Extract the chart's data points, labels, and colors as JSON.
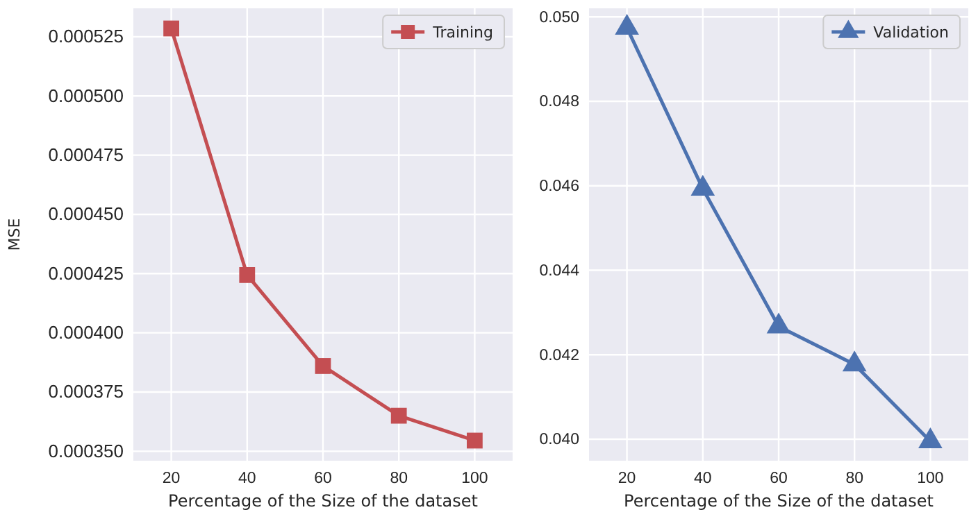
{
  "chart_data": [
    {
      "type": "line",
      "x": [
        20,
        40,
        60,
        80,
        100
      ],
      "xlabel": "Percentage of the Size of the dataset",
      "ylabel": "MSE",
      "series": [
        {
          "name": "Training",
          "color": "#c44e52",
          "values": [
            0.0005285,
            0.0004244,
            0.000386,
            0.000365,
            0.0003545
          ]
        }
      ],
      "xlim": [
        10,
        110
      ],
      "xticks": [
        20,
        40,
        60,
        80,
        100
      ],
      "ylim": [
        0.000346,
        0.000537
      ],
      "yticks": [
        {
          "value": 0.00035,
          "label": "0.000350"
        },
        {
          "value": 0.000375,
          "label": "0.000375"
        },
        {
          "value": 0.0004,
          "label": "0.000400"
        },
        {
          "value": 0.000425,
          "label": "0.000425"
        },
        {
          "value": 0.00045,
          "label": "0.000450"
        },
        {
          "value": 0.000475,
          "label": "0.000475"
        },
        {
          "value": 0.0005,
          "label": "0.000500"
        },
        {
          "value": 0.000525,
          "label": "0.000525"
        }
      ],
      "grid": true,
      "legend": "top right",
      "marker": "square",
      "line_style": "solid"
    },
    {
      "type": "line",
      "x": [
        20,
        40,
        60,
        80,
        100
      ],
      "xlabel": "Percentage of the Size of the dataset",
      "series": [
        {
          "name": "Validation",
          "color": "#4c72b0",
          "values": [
            0.04974,
            0.04593,
            0.04267,
            0.04177,
            0.03995
          ]
        }
      ],
      "xlim": [
        10,
        110
      ],
      "xticks": [
        20,
        40,
        60,
        80,
        100
      ],
      "ylim": [
        0.03949,
        0.0502
      ],
      "yticks": [
        {
          "value": 0.04,
          "label": "0.040"
        },
        {
          "value": 0.042,
          "label": "0.042"
        },
        {
          "value": 0.044,
          "label": "0.044"
        },
        {
          "value": 0.046,
          "label": "0.046"
        },
        {
          "value": 0.048,
          "label": "0.048"
        },
        {
          "value": 0.05,
          "label": "0.050"
        }
      ],
      "grid": true,
      "legend": "top right",
      "marker": "triangle",
      "line_style": "solid"
    }
  ]
}
